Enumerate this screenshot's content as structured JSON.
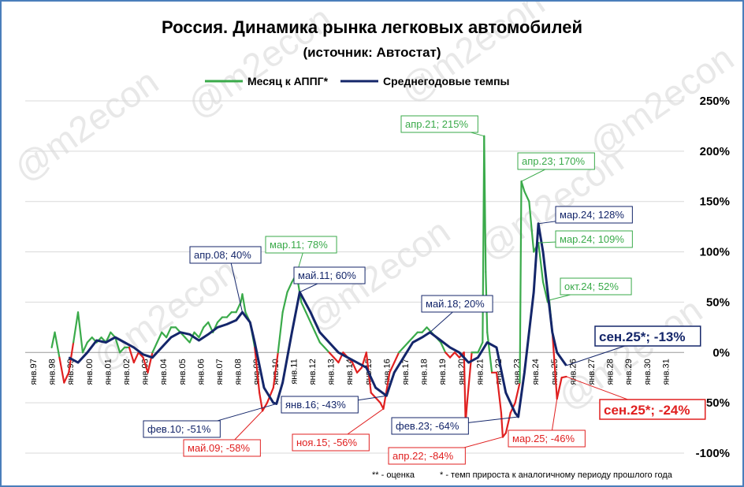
{
  "chart_data": {
    "type": "line",
    "title": "Россия. Динамика рынка легковых автомобилей",
    "subtitle": "(источник: Автостат)",
    "footnotes": [
      "** - оценка",
      "* - темп прироста к аналогичному периоду прошлого года"
    ],
    "watermark": "@m2econ",
    "ylim": [
      -100,
      250
    ],
    "yticks": [
      -100,
      -50,
      0,
      50,
      100,
      150,
      200,
      250
    ],
    "ytick_labels": [
      "-100%",
      "-50%",
      "0%",
      "50%",
      "100%",
      "150%",
      "200%",
      "250%"
    ],
    "xticks": [
      "янв.97",
      "янв.98",
      "янв.99",
      "янв.00",
      "янв.01",
      "янв.02",
      "янв.03",
      "янв.04",
      "янв.05",
      "янв.06",
      "янв.07",
      "янв.08",
      "янв.09",
      "янв.10",
      "янв.11",
      "янв.12",
      "янв.13",
      "янв.14",
      "янв.15",
      "янв.16",
      "янв.17",
      "янв.18",
      "янв.19",
      "янв.20",
      "янв.21",
      "янв.22",
      "янв.23",
      "янв.24",
      "янв.25",
      "янв.26",
      "янв.27",
      "янв.28",
      "янв.29",
      "янв.30",
      "янв.31"
    ],
    "x_start_year": 1997,
    "legend_position": "top",
    "grid": true,
    "series": [
      {
        "name": "Месяц к АППГ*",
        "color": "#3aaa4a",
        "negative_color": "#e02020",
        "points": [
          [
            "1998-01",
            5
          ],
          [
            "1998-03",
            20
          ],
          [
            "1998-06",
            -5
          ],
          [
            "1998-09",
            -30
          ],
          [
            "1998-12",
            -20
          ],
          [
            "1999-03",
            10
          ],
          [
            "1999-06",
            40
          ],
          [
            "1999-09",
            0
          ],
          [
            "1999-12",
            10
          ],
          [
            "2000-03",
            15
          ],
          [
            "2000-06",
            10
          ],
          [
            "2000-09",
            15
          ],
          [
            "2000-12",
            10
          ],
          [
            "2001-03",
            20
          ],
          [
            "2001-06",
            15
          ],
          [
            "2001-09",
            0
          ],
          [
            "2001-12",
            5
          ],
          [
            "2002-03",
            5
          ],
          [
            "2002-06",
            -10
          ],
          [
            "2002-09",
            0
          ],
          [
            "2002-12",
            -5
          ],
          [
            "2003-03",
            -20
          ],
          [
            "2003-06",
            0
          ],
          [
            "2003-09",
            10
          ],
          [
            "2003-12",
            20
          ],
          [
            "2004-03",
            15
          ],
          [
            "2004-06",
            25
          ],
          [
            "2004-09",
            25
          ],
          [
            "2004-12",
            20
          ],
          [
            "2005-03",
            15
          ],
          [
            "2005-06",
            10
          ],
          [
            "2005-09",
            20
          ],
          [
            "2005-12",
            15
          ],
          [
            "2006-03",
            25
          ],
          [
            "2006-06",
            30
          ],
          [
            "2006-09",
            20
          ],
          [
            "2006-12",
            30
          ],
          [
            "2007-03",
            35
          ],
          [
            "2007-06",
            35
          ],
          [
            "2007-09",
            40
          ],
          [
            "2007-12",
            40
          ],
          [
            "2008-03",
            50
          ],
          [
            "2008-04",
            58
          ],
          [
            "2008-06",
            40
          ],
          [
            "2008-09",
            30
          ],
          [
            "2008-12",
            5
          ],
          [
            "2009-03",
            -40
          ],
          [
            "2009-05",
            -58
          ],
          [
            "2009-08",
            -50
          ],
          [
            "2009-12",
            -35
          ],
          [
            "2010-03",
            0
          ],
          [
            "2010-06",
            40
          ],
          [
            "2010-09",
            60
          ],
          [
            "2010-12",
            70
          ],
          [
            "2011-03",
            78
          ],
          [
            "2011-06",
            50
          ],
          [
            "2011-09",
            40
          ],
          [
            "2011-12",
            30
          ],
          [
            "2012-03",
            20
          ],
          [
            "2012-06",
            10
          ],
          [
            "2012-09",
            5
          ],
          [
            "2012-12",
            0
          ],
          [
            "2013-03",
            -5
          ],
          [
            "2013-06",
            -10
          ],
          [
            "2013-09",
            0
          ],
          [
            "2013-12",
            -5
          ],
          [
            "2014-03",
            -10
          ],
          [
            "2014-06",
            -20
          ],
          [
            "2014-09",
            -15
          ],
          [
            "2014-12",
            0
          ],
          [
            "2015-03",
            -40
          ],
          [
            "2015-06",
            -45
          ],
          [
            "2015-09",
            -50
          ],
          [
            "2015-11",
            -56
          ],
          [
            "2016-03",
            -20
          ],
          [
            "2016-06",
            -10
          ],
          [
            "2016-09",
            0
          ],
          [
            "2016-12",
            5
          ],
          [
            "2017-03",
            10
          ],
          [
            "2017-06",
            15
          ],
          [
            "2017-09",
            20
          ],
          [
            "2017-12",
            20
          ],
          [
            "2018-03",
            25
          ],
          [
            "2018-06",
            20
          ],
          [
            "2018-09",
            15
          ],
          [
            "2018-12",
            10
          ],
          [
            "2019-03",
            0
          ],
          [
            "2019-06",
            -5
          ],
          [
            "2019-09",
            0
          ],
          [
            "2019-12",
            -5
          ],
          [
            "2020-03",
            0
          ],
          [
            "2020-04",
            -70
          ],
          [
            "2020-05",
            -50
          ],
          [
            "2020-08",
            0
          ],
          [
            "2020-12",
            0
          ],
          [
            "2021-03",
            10
          ],
          [
            "2021-04",
            215
          ],
          [
            "2021-05",
            80
          ],
          [
            "2021-06",
            20
          ],
          [
            "2021-09",
            -20
          ],
          [
            "2021-12",
            -20
          ],
          [
            "2022-03",
            -60
          ],
          [
            "2022-04",
            -84
          ],
          [
            "2022-06",
            -80
          ],
          [
            "2022-09",
            -60
          ],
          [
            "2022-12",
            -50
          ],
          [
            "2023-03",
            -30
          ],
          [
            "2023-04",
            170
          ],
          [
            "2023-06",
            160
          ],
          [
            "2023-09",
            150
          ],
          [
            "2023-12",
            100
          ],
          [
            "2024-03",
            109
          ],
          [
            "2024-06",
            70
          ],
          [
            "2024-09",
            50
          ],
          [
            "2024-10",
            52
          ],
          [
            "2024-12",
            20
          ],
          [
            "2025-03",
            -46
          ],
          [
            "2025-06",
            -25
          ],
          [
            "2025-09",
            -24
          ]
        ]
      },
      {
        "name": "Среднегодовые темпы",
        "color": "#14266a",
        "points": [
          [
            "1998-12",
            -5
          ],
          [
            "1999-06",
            -10
          ],
          [
            "1999-12",
            0
          ],
          [
            "2000-06",
            12
          ],
          [
            "2000-12",
            10
          ],
          [
            "2001-06",
            15
          ],
          [
            "2001-12",
            10
          ],
          [
            "2002-06",
            5
          ],
          [
            "2002-12",
            -2
          ],
          [
            "2003-06",
            -5
          ],
          [
            "2003-12",
            5
          ],
          [
            "2004-06",
            15
          ],
          [
            "2004-12",
            20
          ],
          [
            "2005-06",
            18
          ],
          [
            "2005-12",
            12
          ],
          [
            "2006-06",
            18
          ],
          [
            "2006-12",
            25
          ],
          [
            "2007-06",
            28
          ],
          [
            "2007-12",
            32
          ],
          [
            "2008-04",
            40
          ],
          [
            "2008-09",
            30
          ],
          [
            "2008-12",
            10
          ],
          [
            "2009-06",
            -35
          ],
          [
            "2009-12",
            -50
          ],
          [
            "2010-02",
            -51
          ],
          [
            "2010-06",
            -30
          ],
          [
            "2010-12",
            20
          ],
          [
            "2011-05",
            60
          ],
          [
            "2011-12",
            40
          ],
          [
            "2012-06",
            20
          ],
          [
            "2012-12",
            10
          ],
          [
            "2013-06",
            0
          ],
          [
            "2013-12",
            -5
          ],
          [
            "2014-06",
            -10
          ],
          [
            "2014-12",
            -15
          ],
          [
            "2015-06",
            -35
          ],
          [
            "2016-01",
            -43
          ],
          [
            "2016-06",
            -20
          ],
          [
            "2016-12",
            -5
          ],
          [
            "2017-06",
            10
          ],
          [
            "2017-12",
            15
          ],
          [
            "2018-05",
            20
          ],
          [
            "2018-12",
            12
          ],
          [
            "2019-06",
            5
          ],
          [
            "2019-12",
            0
          ],
          [
            "2020-06",
            -10
          ],
          [
            "2020-12",
            -5
          ],
          [
            "2021-06",
            10
          ],
          [
            "2021-12",
            5
          ],
          [
            "2022-06",
            -40
          ],
          [
            "2022-12",
            -60
          ],
          [
            "2023-02",
            -64
          ],
          [
            "2023-06",
            -20
          ],
          [
            "2023-12",
            60
          ],
          [
            "2024-03",
            128
          ],
          [
            "2024-06",
            100
          ],
          [
            "2024-09",
            60
          ],
          [
            "2024-12",
            20
          ],
          [
            "2025-03",
            0
          ],
          [
            "2025-09",
            -13
          ]
        ]
      }
    ],
    "annotations": [
      {
        "text": "апр.08; 40%",
        "color": "#14266a",
        "x": "2008-04",
        "y": 40
      },
      {
        "text": "мар.11; 78%",
        "color": "#3aaa4a",
        "x": "2011-03",
        "y": 78
      },
      {
        "text": "май.11; 60%",
        "color": "#14266a",
        "x": "2011-05",
        "y": 60
      },
      {
        "text": "фев.10; -51%",
        "color": "#14266a",
        "x": "2010-02",
        "y": -51
      },
      {
        "text": "май.09; -58%",
        "color": "#e02020",
        "x": "2009-05",
        "y": -58
      },
      {
        "text": "янв.16; -43%",
        "color": "#14266a",
        "x": "2016-01",
        "y": -43
      },
      {
        "text": "ноя.15; -56%",
        "color": "#e02020",
        "x": "2015-11",
        "y": -56
      },
      {
        "text": "май.18; 20%",
        "color": "#14266a",
        "x": "2018-05",
        "y": 20
      },
      {
        "text": "апр.21; 215%",
        "color": "#3aaa4a",
        "x": "2021-04",
        "y": 215
      },
      {
        "text": "фев.23; -64%",
        "color": "#14266a",
        "x": "2023-02",
        "y": -64
      },
      {
        "text": "апр.22; -84%",
        "color": "#e02020",
        "x": "2022-04",
        "y": -84
      },
      {
        "text": "апр.23; 170%",
        "color": "#3aaa4a",
        "x": "2023-04",
        "y": 170
      },
      {
        "text": "мар.24; 128%",
        "color": "#14266a",
        "x": "2024-03",
        "y": 128
      },
      {
        "text": "мар.24; 109%",
        "color": "#3aaa4a",
        "x": "2024-03",
        "y": 109
      },
      {
        "text": "окт.24; 52%",
        "color": "#3aaa4a",
        "x": "2024-10",
        "y": 52
      },
      {
        "text": "сен.25*; -13%",
        "color": "#14266a",
        "x": "2025-09",
        "y": -13
      },
      {
        "text": "мар.25; -46%",
        "color": "#e02020",
        "x": "2025-03",
        "y": -46
      },
      {
        "text": "сен.25*; -24%",
        "color": "#e02020",
        "x": "2025-09",
        "y": -24
      }
    ]
  }
}
